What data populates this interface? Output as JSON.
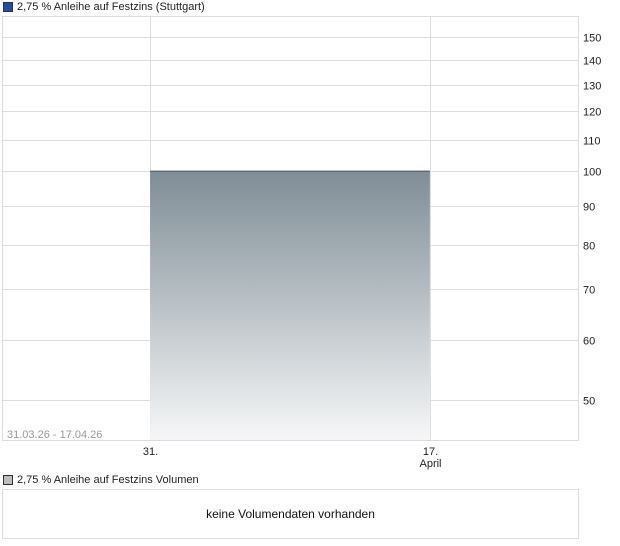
{
  "chart_data": {
    "type": "area",
    "title": "2,75 % Anleihe auf Festzins (Stuttgart)",
    "series": [
      {
        "name": "2,75 % Anleihe auf Festzins (Stuttgart)",
        "x": [
          "2026-03-31",
          "2026-04-17"
        ],
        "values": [
          100,
          100
        ],
        "color": "#1f4fa8"
      }
    ],
    "y_scale": "log",
    "ylim": [
      44.3,
      160
    ],
    "xlim": [
      "2026-03-22",
      "2026-04-26"
    ],
    "y_ticks": [
      50,
      60,
      70,
      80,
      90,
      100,
      110,
      120,
      130,
      140,
      150
    ],
    "x_ticks": [
      {
        "date": "2026-03-31",
        "label": "31.",
        "sub": ""
      },
      {
        "date": "2026-04-17",
        "label": "17.",
        "sub": "April"
      }
    ],
    "range_label": "31.03.26 - 17.04.26",
    "grid": true,
    "area_gradient": [
      "#7f8d96",
      "#f6f7f8"
    ],
    "line_color": "#4a5660"
  },
  "volume": {
    "title": "2,75 % Anleihe auf Festzins Volumen",
    "swatch_color": "#bbbbbb",
    "message": "keine Volumendaten vorhanden"
  }
}
